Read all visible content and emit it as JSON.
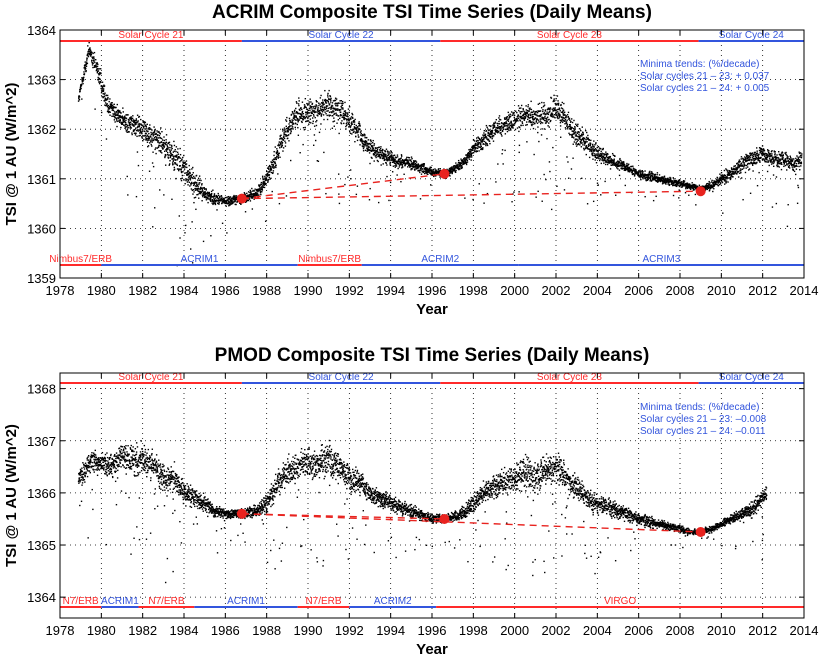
{
  "colors": {
    "red": "#ff2a2a",
    "blue": "#3355dd",
    "trend": "#e8231f",
    "dots": "#000000"
  },
  "chart_data": [
    {
      "type": "scatter",
      "title": "ACRIM Composite TSI Time Series (Daily Means)",
      "xlabel": "Year",
      "ylabel": "TSI @ 1 AU (W/m^2)",
      "xlim": [
        1978,
        2014
      ],
      "ylim": [
        1359,
        1364
      ],
      "xticks": [
        1978,
        1980,
        1982,
        1984,
        1986,
        1988,
        1990,
        1992,
        1994,
        1996,
        1998,
        2000,
        2002,
        2004,
        2006,
        2008,
        2010,
        2012,
        2014
      ],
      "yticks": [
        1359,
        1360,
        1361,
        1362,
        1363,
        1364
      ],
      "grid": true,
      "series_profile": {
        "name": "Daily mean TSI",
        "x": [
          1978.9,
          1979.4,
          1979.8,
          1980.3,
          1981.0,
          1982.0,
          1983.0,
          1983.8,
          1984.5,
          1985.0,
          1985.5,
          1986.0,
          1986.8,
          1987.5,
          1988.0,
          1988.5,
          1989.0,
          1989.5,
          1990.0,
          1990.5,
          1991.0,
          1991.5,
          1992.0,
          1992.5,
          1993.0,
          1993.5,
          1994.0,
          1995.0,
          1996.0,
          1996.7,
          1997.5,
          1998.0,
          1998.5,
          1999.0,
          1999.5,
          2000.0,
          2000.5,
          2001.0,
          2001.5,
          2002.0,
          2002.5,
          2003.0,
          2003.5,
          2004.0,
          2004.5,
          2005.0,
          2006.0,
          2007.0,
          2008.0,
          2009.0,
          2009.5,
          2010.0,
          2010.5,
          2011.0,
          2011.5,
          2012.0,
          2012.5,
          2013.0,
          2013.5,
          2013.9
        ],
        "y": [
          1362.6,
          1363.6,
          1363.2,
          1362.5,
          1362.2,
          1362.0,
          1361.7,
          1361.3,
          1360.9,
          1360.7,
          1360.6,
          1360.55,
          1360.6,
          1360.7,
          1361.0,
          1361.5,
          1362.0,
          1362.3,
          1362.3,
          1362.4,
          1362.5,
          1362.4,
          1362.2,
          1361.9,
          1361.6,
          1361.5,
          1361.4,
          1361.3,
          1361.15,
          1361.1,
          1361.3,
          1361.6,
          1361.8,
          1362.0,
          1362.1,
          1362.2,
          1362.3,
          1362.2,
          1362.3,
          1362.4,
          1362.2,
          1361.9,
          1361.7,
          1361.5,
          1361.4,
          1361.3,
          1361.1,
          1361.0,
          1360.9,
          1360.8,
          1360.85,
          1361.0,
          1361.1,
          1361.3,
          1361.4,
          1361.5,
          1361.4,
          1361.4,
          1361.3,
          1361.4
        ],
        "spread": [
          0.2,
          0.3,
          0.3,
          0.35,
          0.4,
          0.45,
          0.5,
          0.5,
          0.45,
          0.3,
          0.2,
          0.15,
          0.15,
          0.2,
          0.3,
          0.4,
          0.45,
          0.45,
          0.45,
          0.45,
          0.5,
          0.5,
          0.45,
          0.4,
          0.3,
          0.3,
          0.25,
          0.2,
          0.15,
          0.15,
          0.2,
          0.3,
          0.35,
          0.35,
          0.35,
          0.4,
          0.4,
          0.45,
          0.45,
          0.45,
          0.45,
          0.4,
          0.35,
          0.3,
          0.25,
          0.2,
          0.15,
          0.15,
          0.12,
          0.1,
          0.15,
          0.2,
          0.25,
          0.3,
          0.3,
          0.3,
          0.3,
          0.3,
          0.3,
          0.3
        ]
      },
      "minima_points": [
        {
          "x": 1986.8,
          "y": 1360.6
        },
        {
          "x": 1996.6,
          "y": 1361.1
        },
        {
          "x": 2009.0,
          "y": 1360.75
        }
      ],
      "trend_lines": [
        {
          "x": [
            1986.8,
            1996.6
          ],
          "y": [
            1360.6,
            1361.1
          ]
        },
        {
          "x": [
            1986.8,
            2009.0
          ],
          "y": [
            1360.6,
            1360.75
          ]
        }
      ],
      "cycle_bands": [
        {
          "label": "Solar Cycle 21",
          "x0": 1978,
          "x1": 1986.8,
          "color": "red"
        },
        {
          "label": "Solar Cycle 22",
          "x0": 1986.8,
          "x1": 1996.4,
          "color": "blue"
        },
        {
          "label": "Solar Cycle 23",
          "x0": 1996.4,
          "x1": 2008.9,
          "color": "red"
        },
        {
          "label": "Solar Cycle 24",
          "x0": 2008.9,
          "x1": 2014,
          "color": "blue"
        }
      ],
      "instrument_bands": [
        {
          "label": "Nimbus7/ERB",
          "x0": 1978,
          "x1": 1980.0,
          "color": "red"
        },
        {
          "label": "ACRIM1",
          "x0": 1980.0,
          "x1": 1989.5,
          "color": "blue"
        },
        {
          "label": "Nimbus7/ERB",
          "x0": 1989.5,
          "x1": 1992.6,
          "color": "red"
        },
        {
          "label": "ACRIM2",
          "x0": 1992.6,
          "x1": 2000.2,
          "color": "blue"
        },
        {
          "label": "ACRIM3",
          "x0": 2000.2,
          "x1": 2014,
          "color": "blue"
        }
      ],
      "annotation": [
        "Minima trends: (%/decade)",
        "Solar cycles 21 – 23: + 0.037",
        "Solar cycles 21 – 24: + 0.005"
      ]
    },
    {
      "type": "scatter",
      "title": "PMOD Composite TSI Time Series (Daily Means)",
      "xlabel": "Year",
      "ylabel": "TSI @ 1 AU (W/m^2)",
      "xlim": [
        1978,
        2014
      ],
      "ylim": [
        1363.6,
        1368.3
      ],
      "xticks": [
        1978,
        1980,
        1982,
        1984,
        1986,
        1988,
        1990,
        1992,
        1994,
        1996,
        1998,
        2000,
        2002,
        2004,
        2006,
        2008,
        2010,
        2012,
        2014
      ],
      "yticks": [
        1364,
        1365,
        1366,
        1367,
        1368
      ],
      "grid": true,
      "series_profile": {
        "name": "Daily mean TSI",
        "x": [
          1978.9,
          1979.5,
          1980.0,
          1980.5,
          1981.0,
          1981.5,
          1982.0,
          1982.5,
          1983.0,
          1983.5,
          1984.0,
          1984.5,
          1985.0,
          1985.5,
          1986.0,
          1986.8,
          1987.5,
          1988.0,
          1988.5,
          1989.0,
          1989.5,
          1990.0,
          1990.5,
          1991.0,
          1991.5,
          1992.0,
          1992.5,
          1993.0,
          1994.0,
          1995.0,
          1996.0,
          1996.7,
          1997.5,
          1998.0,
          1998.5,
          1999.0,
          1999.5,
          2000.0,
          2000.5,
          2001.0,
          2001.5,
          2002.0,
          2002.5,
          2003.0,
          2003.5,
          2004.0,
          2005.0,
          2006.0,
          2007.0,
          2008.0,
          2008.5,
          2009.0,
          2009.5,
          2010.0,
          2010.5,
          2011.0,
          2011.5,
          2012.0,
          2012.2
        ],
        "y": [
          1366.3,
          1366.6,
          1366.6,
          1366.5,
          1366.7,
          1366.6,
          1366.7,
          1366.5,
          1366.3,
          1366.3,
          1366.0,
          1365.9,
          1365.8,
          1365.65,
          1365.6,
          1365.6,
          1365.65,
          1365.8,
          1366.2,
          1366.4,
          1366.5,
          1366.6,
          1366.5,
          1366.7,
          1366.5,
          1366.3,
          1366.2,
          1366.0,
          1365.8,
          1365.65,
          1365.5,
          1365.5,
          1365.6,
          1365.8,
          1366.0,
          1366.1,
          1366.2,
          1366.3,
          1366.4,
          1366.3,
          1366.4,
          1366.5,
          1366.3,
          1366.1,
          1365.9,
          1365.8,
          1365.65,
          1365.5,
          1365.4,
          1365.3,
          1365.25,
          1365.25,
          1365.3,
          1365.4,
          1365.5,
          1365.6,
          1365.7,
          1365.9,
          1366.0
        ],
        "spread": [
          0.3,
          0.35,
          0.35,
          0.4,
          0.45,
          0.5,
          0.5,
          0.5,
          0.5,
          0.45,
          0.35,
          0.3,
          0.25,
          0.2,
          0.15,
          0.15,
          0.2,
          0.3,
          0.4,
          0.45,
          0.5,
          0.5,
          0.5,
          0.55,
          0.5,
          0.45,
          0.35,
          0.3,
          0.25,
          0.2,
          0.15,
          0.15,
          0.2,
          0.3,
          0.35,
          0.4,
          0.4,
          0.45,
          0.5,
          0.5,
          0.5,
          0.5,
          0.45,
          0.4,
          0.35,
          0.3,
          0.25,
          0.2,
          0.15,
          0.12,
          0.1,
          0.1,
          0.1,
          0.12,
          0.15,
          0.2,
          0.25,
          0.3,
          0.3
        ]
      },
      "minima_points": [
        {
          "x": 1986.8,
          "y": 1365.6
        },
        {
          "x": 1996.6,
          "y": 1365.5
        },
        {
          "x": 2009.0,
          "y": 1365.25
        }
      ],
      "trend_lines": [
        {
          "x": [
            1986.8,
            1996.6
          ],
          "y": [
            1365.6,
            1365.5
          ]
        },
        {
          "x": [
            1986.8,
            2009.0
          ],
          "y": [
            1365.6,
            1365.25
          ]
        }
      ],
      "cycle_bands": [
        {
          "label": "Solar Cycle 21",
          "x0": 1978,
          "x1": 1986.8,
          "color": "red"
        },
        {
          "label": "Solar Cycle 22",
          "x0": 1986.8,
          "x1": 1996.4,
          "color": "blue"
        },
        {
          "label": "Solar Cycle 23",
          "x0": 1996.4,
          "x1": 2008.9,
          "color": "red"
        },
        {
          "label": "Solar Cycle 24",
          "x0": 2008.9,
          "x1": 2014,
          "color": "blue"
        }
      ],
      "instrument_bands": [
        {
          "label": "N7/ERB",
          "x0": 1978,
          "x1": 1980.0,
          "color": "red"
        },
        {
          "label": "ACRIM1",
          "x0": 1980.0,
          "x1": 1981.8,
          "color": "blue"
        },
        {
          "label": "N7/ERB",
          "x0": 1981.8,
          "x1": 1984.5,
          "color": "red"
        },
        {
          "label": "ACRIM1",
          "x0": 1984.5,
          "x1": 1989.5,
          "color": "blue"
        },
        {
          "label": "N7/ERB",
          "x0": 1989.5,
          "x1": 1992.0,
          "color": "red"
        },
        {
          "label": "ACRIM2",
          "x0": 1992.0,
          "x1": 1996.2,
          "color": "blue"
        },
        {
          "label": "VIRGO",
          "x0": 1996.2,
          "x1": 2014,
          "color": "red"
        }
      ],
      "annotation": [
        "Minima trends: (%/decade)",
        "Solar cycles 21 – 23: –0.008",
        "Solar cycles 21 – 24: –0.011"
      ]
    }
  ]
}
